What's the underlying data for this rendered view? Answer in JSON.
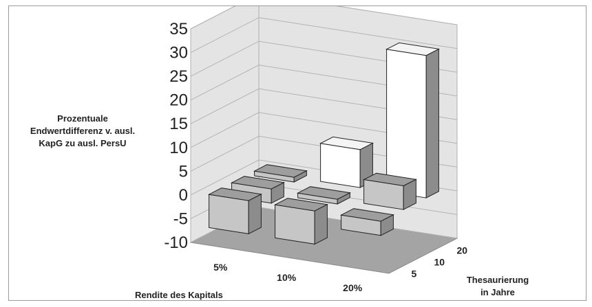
{
  "chart_data": {
    "type": "bar",
    "ylabel": "Prozentuale Endwertdifferenz v. ausl. KapG zu ausl. PersU",
    "xlabel": "Rendite des Kapitals",
    "zlabel": "Thesaurierung in Jahre",
    "x_categories": [
      "5%",
      "10%",
      "20%"
    ],
    "z_categories": [
      "5",
      "10",
      "20"
    ],
    "ylim": [
      -10,
      35
    ],
    "yticks": [
      35,
      30,
      25,
      20,
      15,
      10,
      5,
      0,
      -5,
      -10
    ],
    "series": [
      {
        "name": "5",
        "values": [
          -7,
          -7,
          -3
        ]
      },
      {
        "name": "10",
        "values": [
          -3,
          -1,
          5
        ]
      },
      {
        "name": "20",
        "values": [
          -1,
          8,
          30
        ]
      }
    ]
  },
  "colors": {
    "bar_light": "#c6c6c6",
    "bar_dark": "#8c8c8c",
    "bar_white": "#ffffff",
    "floor": "#a4a4a4",
    "wall": "#e4e4e4"
  }
}
